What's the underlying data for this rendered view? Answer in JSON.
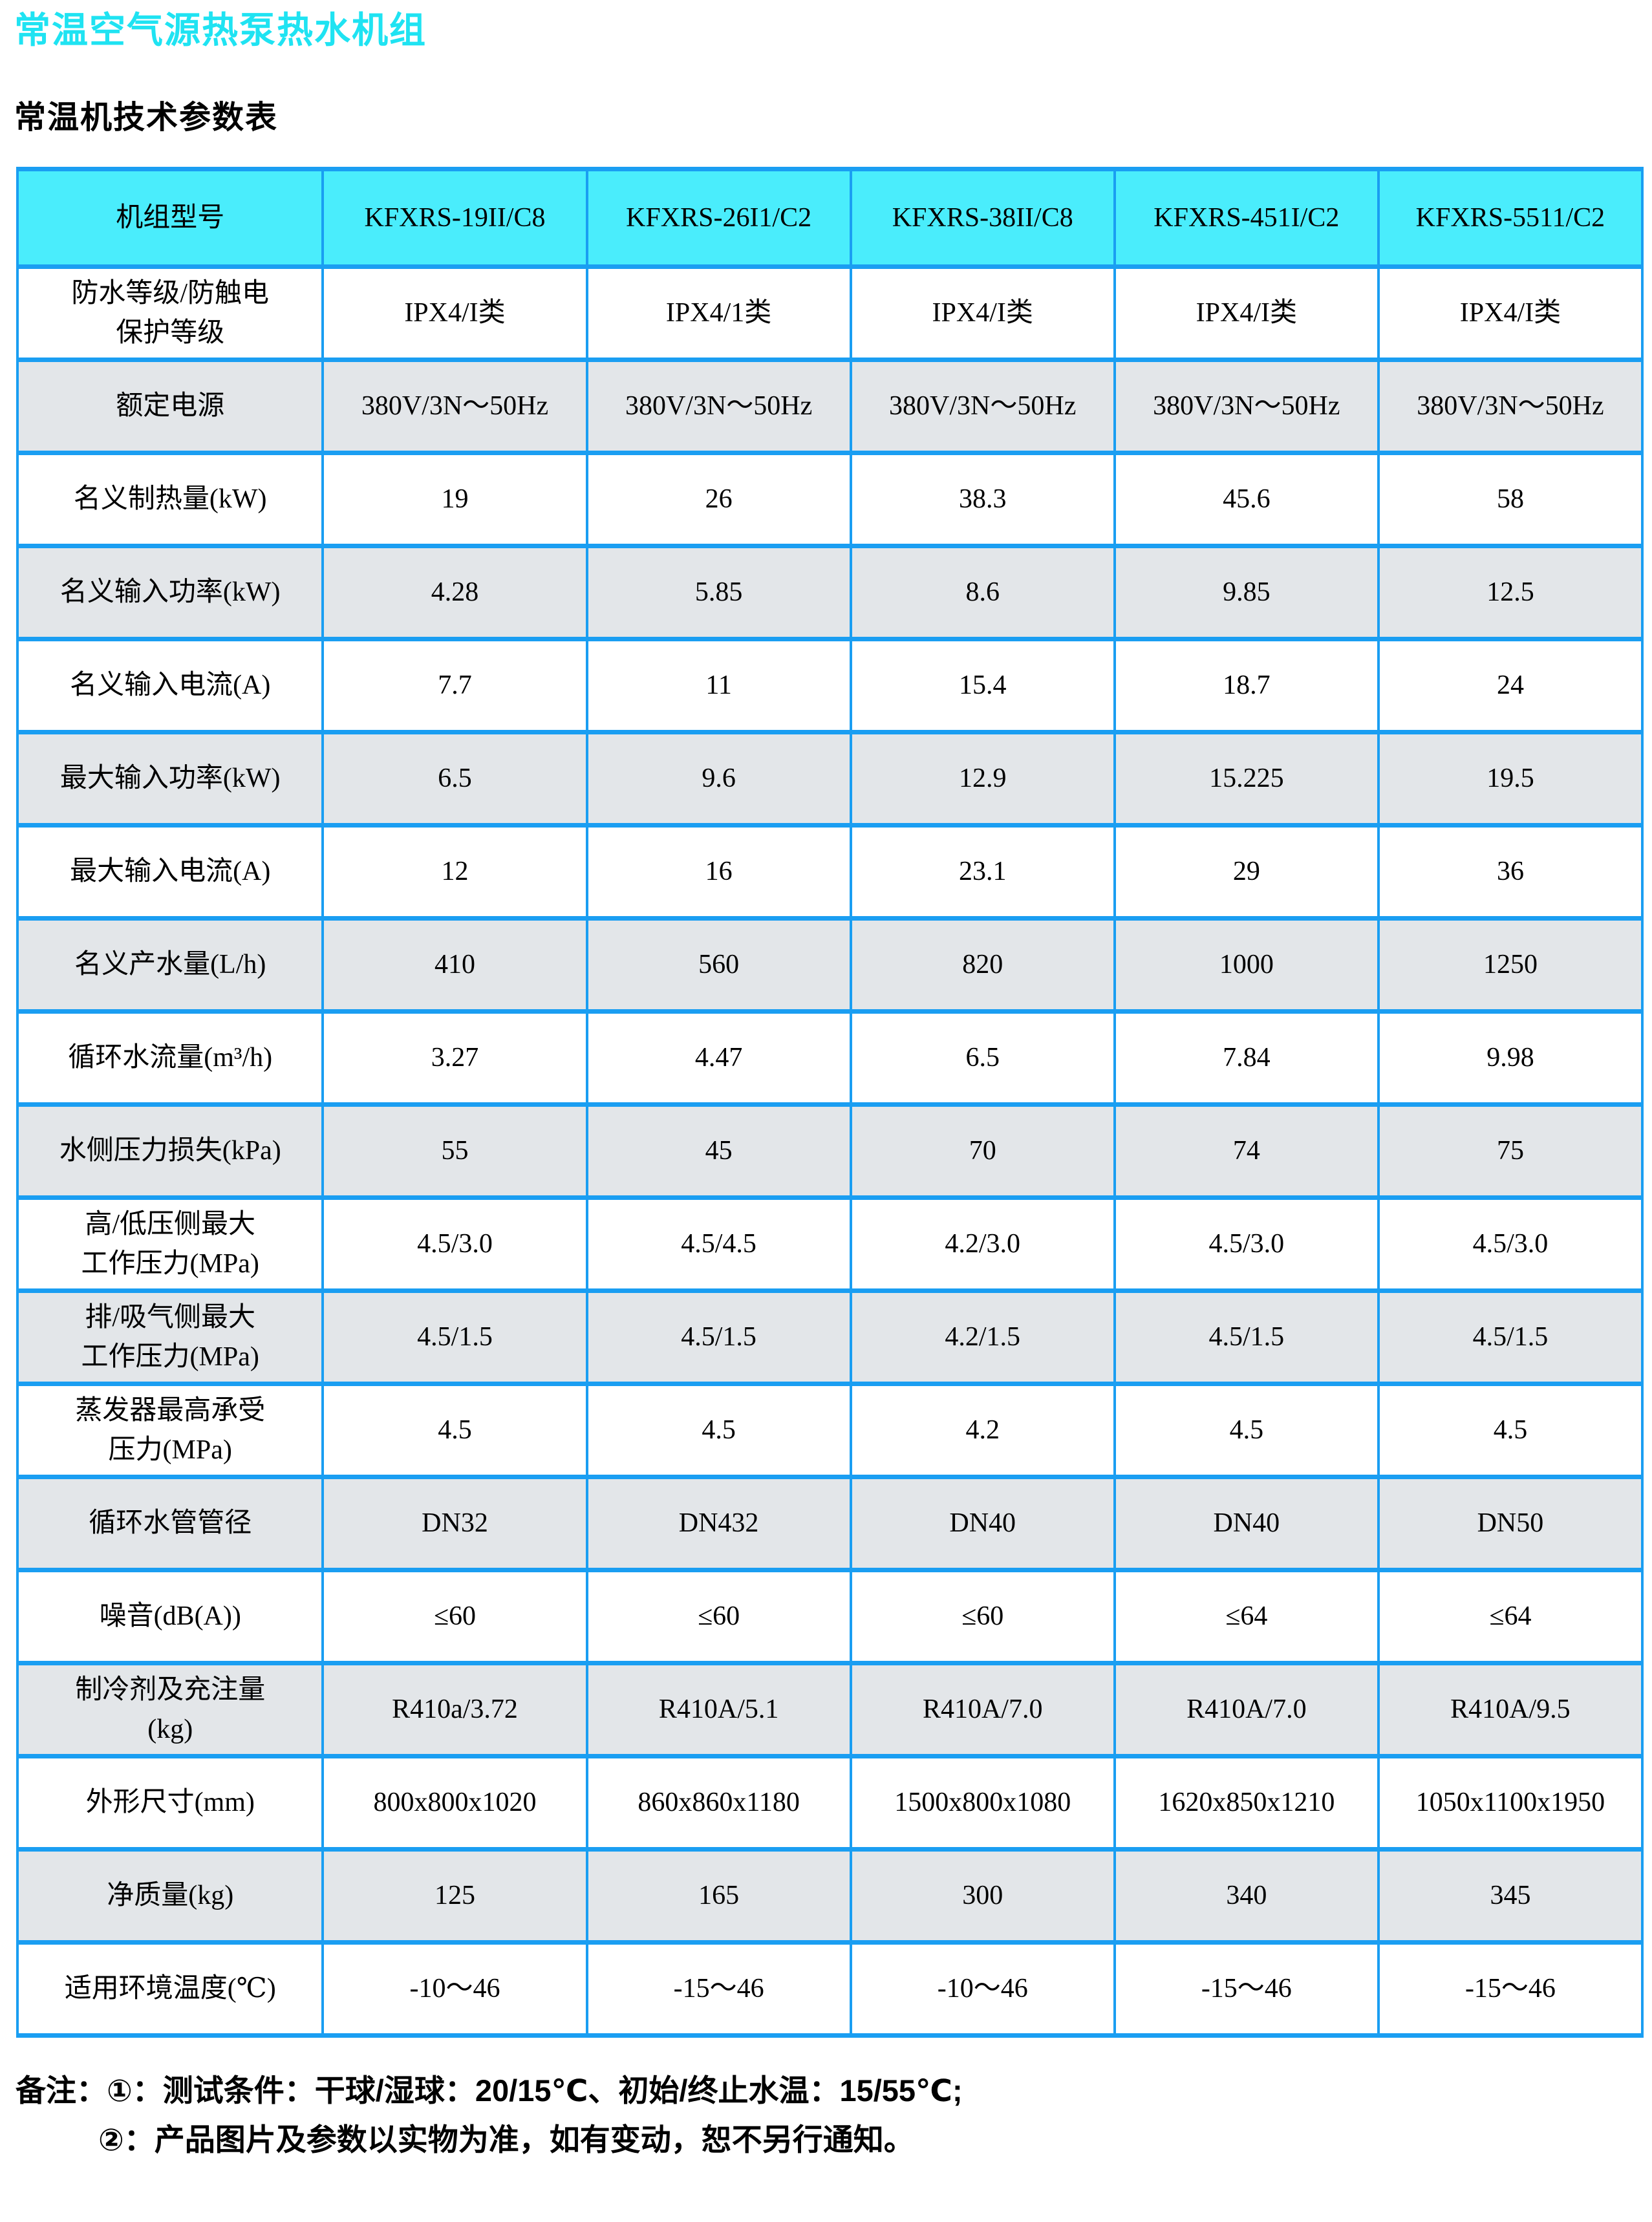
{
  "page": {
    "title": "常温空气源热泵热水机组",
    "subtitle": "常温机技术参数表"
  },
  "colors": {
    "title_cyan": "#1fe3f2",
    "table_header_bg": "#4aedfc",
    "table_border_blue": "#1a9ef2",
    "row_shaded_bg": "#e3e6e9",
    "row_plain_bg": "#ffffff",
    "text": "#000000"
  },
  "table": {
    "header": {
      "label": "机组型号",
      "models": [
        "KFXRS-19II/C8",
        "KFXRS-26I1/C2",
        "KFXRS-38II/C8",
        "KFXRS-451I/C2",
        "KFXRS-5511/C2"
      ]
    },
    "rows": [
      {
        "label": "防水等级/防触电\n保护等级",
        "values": [
          "IPX4/I类",
          "IPX4/1类",
          "IPX4/I类",
          "IPX4/I类",
          "IPX4/I类"
        ]
      },
      {
        "label": "额定电源",
        "values": [
          "380V/3N～50Hz",
          "380V/3N～50Hz",
          "380V/3N～50Hz",
          "380V/3N～50Hz",
          "380V/3N～50Hz"
        ]
      },
      {
        "label": "名义制热量(kW)",
        "values": [
          "19",
          "26",
          "38.3",
          "45.6",
          "58"
        ]
      },
      {
        "label": "名义输入功率(kW)",
        "values": [
          "4.28",
          "5.85",
          "8.6",
          "9.85",
          "12.5"
        ]
      },
      {
        "label": "名义输入电流(A)",
        "values": [
          "7.7",
          "11",
          "15.4",
          "18.7",
          "24"
        ]
      },
      {
        "label": "最大输入功率(kW)",
        "values": [
          "6.5",
          "9.6",
          "12.9",
          "15.225",
          "19.5"
        ]
      },
      {
        "label": "最大输入电流(A)",
        "values": [
          "12",
          "16",
          "23.1",
          "29",
          "36"
        ]
      },
      {
        "label": "名义产水量(L/h)",
        "values": [
          "410",
          "560",
          "820",
          "1000",
          "1250"
        ]
      },
      {
        "label": "循环水流量(m³/h)",
        "values": [
          "3.27",
          "4.47",
          "6.5",
          "7.84",
          "9.98"
        ]
      },
      {
        "label": "水侧压力损失(kPa)",
        "values": [
          "55",
          "45",
          "70",
          "74",
          "75"
        ]
      },
      {
        "label": "高/低压侧最大\n工作压力(MPa)",
        "values": [
          "4.5/3.0",
          "4.5/4.5",
          "4.2/3.0",
          "4.5/3.0",
          "4.5/3.0"
        ]
      },
      {
        "label": "排/吸气侧最大\n工作压力(MPa)",
        "values": [
          "4.5/1.5",
          "4.5/1.5",
          "4.2/1.5",
          "4.5/1.5",
          "4.5/1.5"
        ]
      },
      {
        "label": "蒸发器最高承受\n压力(MPa)",
        "values": [
          "4.5",
          "4.5",
          "4.2",
          "4.5",
          "4.5"
        ]
      },
      {
        "label": "循环水管管径",
        "values": [
          "DN32",
          "DN432",
          "DN40",
          "DN40",
          "DN50"
        ]
      },
      {
        "label": "噪音(dB(A))",
        "values": [
          "≤60",
          "≤60",
          "≤60",
          "≤64",
          "≤64"
        ]
      },
      {
        "label": "制冷剂及充注量\n(kg)",
        "values": [
          "R410a/3.72",
          "R410A/5.1",
          "R410A/7.0",
          "R410A/7.0",
          "R410A/9.5"
        ]
      },
      {
        "label": "外形尺寸(mm)",
        "values": [
          "800x800x1020",
          "860x860x1180",
          "1500x800x1080",
          "1620x850x1210",
          "1050x1100x1950"
        ]
      },
      {
        "label": "净质量(kg)",
        "values": [
          "125",
          "165",
          "300",
          "340",
          "345"
        ]
      },
      {
        "label": "适用环境温度(℃)",
        "values": [
          "-10～46",
          "-15～46",
          "-10～46",
          "-15～46",
          "-15～46"
        ]
      }
    ]
  },
  "notes": {
    "line1": "备注：①：测试条件：干球/湿球：20/15℃、初始/终止水温：15/55℃;",
    "line2": "②：产品图片及参数以实物为准，如有变动，恕不另行通知。"
  }
}
